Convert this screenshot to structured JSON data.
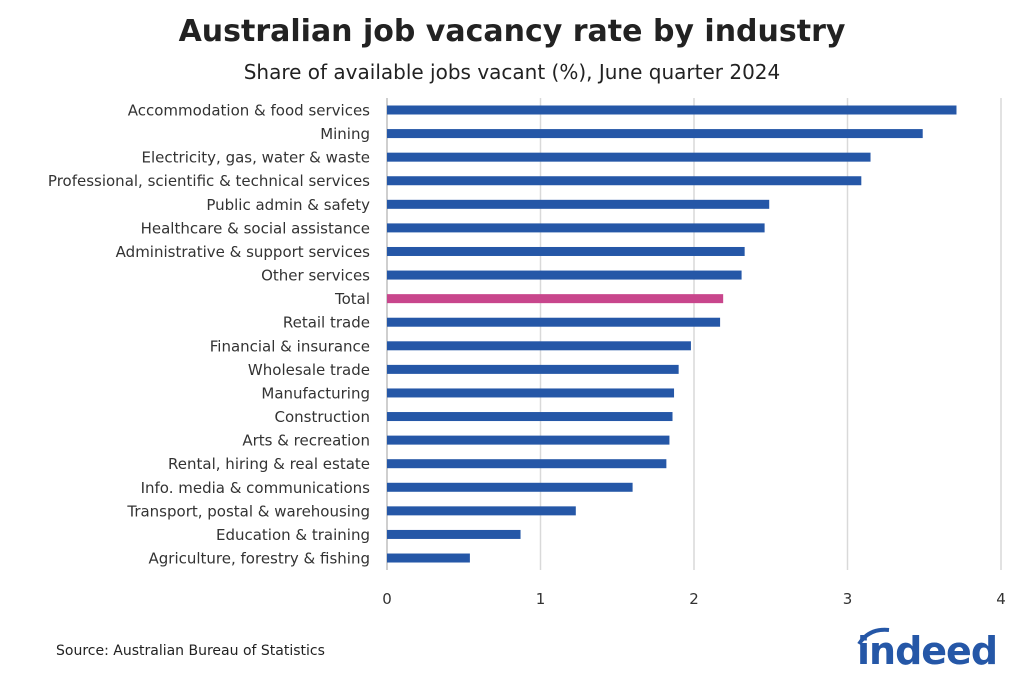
{
  "title": "Australian job vacancy rate by industry",
  "subtitle": "Share of available jobs vacant (%), June quarter 2024",
  "source": "Source: Australian Bureau of Statistics",
  "logo_text": "indeed",
  "chart_data": {
    "type": "bar",
    "orientation": "horizontal",
    "title": "Australian job vacancy rate by industry",
    "subtitle": "Share of available jobs vacant (%), June quarter 2024",
    "xlim": [
      0,
      4
    ],
    "xticks": [
      "0",
      "1",
      "2",
      "3",
      "4"
    ],
    "grid": "vertical",
    "colors": {
      "default": "#2557a7",
      "highlight": "#c8468c",
      "grid": "#d9d9d9"
    },
    "categories": [
      "Accommodation & food services",
      "Mining",
      "Electricity, gas, water & waste",
      "Professional, scientific & technical services",
      "Public admin & safety",
      "Healthcare & social assistance",
      "Administrative & support services",
      "Other services",
      "Total",
      "Retail trade",
      "Financial & insurance",
      "Wholesale trade",
      "Manufacturing",
      "Construction",
      "Arts & recreation",
      "Rental, hiring & real estate",
      "Info. media & communications",
      "Transport, postal & warehousing",
      "Education & training",
      "Agriculture, forestry & fishing"
    ],
    "values": [
      3.71,
      3.49,
      3.15,
      3.09,
      2.49,
      2.46,
      2.33,
      2.31,
      2.19,
      2.17,
      1.98,
      1.9,
      1.87,
      1.86,
      1.84,
      1.82,
      1.6,
      1.23,
      0.87,
      0.54
    ],
    "highlight": "Total"
  }
}
